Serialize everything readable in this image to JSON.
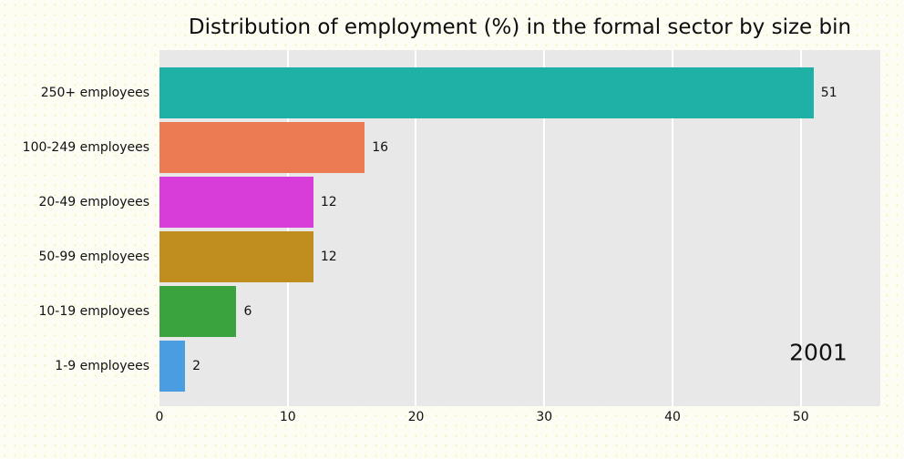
{
  "figure": {
    "background": "#fdfdf4",
    "plot_background": "#e8e8e8",
    "grid_color": "#ffffff",
    "text_color": "#111111"
  },
  "chart_data": {
    "type": "bar",
    "orientation": "horizontal",
    "title": "Distribution of employment (%) in the formal sector by size bin",
    "categories": [
      "250+ employees",
      "100-249 employees",
      "20-49 employees",
      "50-99 employees",
      "10-19 employees",
      "1-9 employees"
    ],
    "values": [
      51,
      16,
      12,
      12,
      6,
      2
    ],
    "bar_colors": [
      "#1fb0a6",
      "#ec7a52",
      "#d93dd9",
      "#c08e1f",
      "#3ba33e",
      "#4a9de0"
    ],
    "xlim": [
      0,
      56.2
    ],
    "xticks": [
      0,
      10,
      20,
      30,
      40,
      50
    ],
    "grid": true,
    "legend": false,
    "annotation": {
      "text": "2001"
    }
  }
}
